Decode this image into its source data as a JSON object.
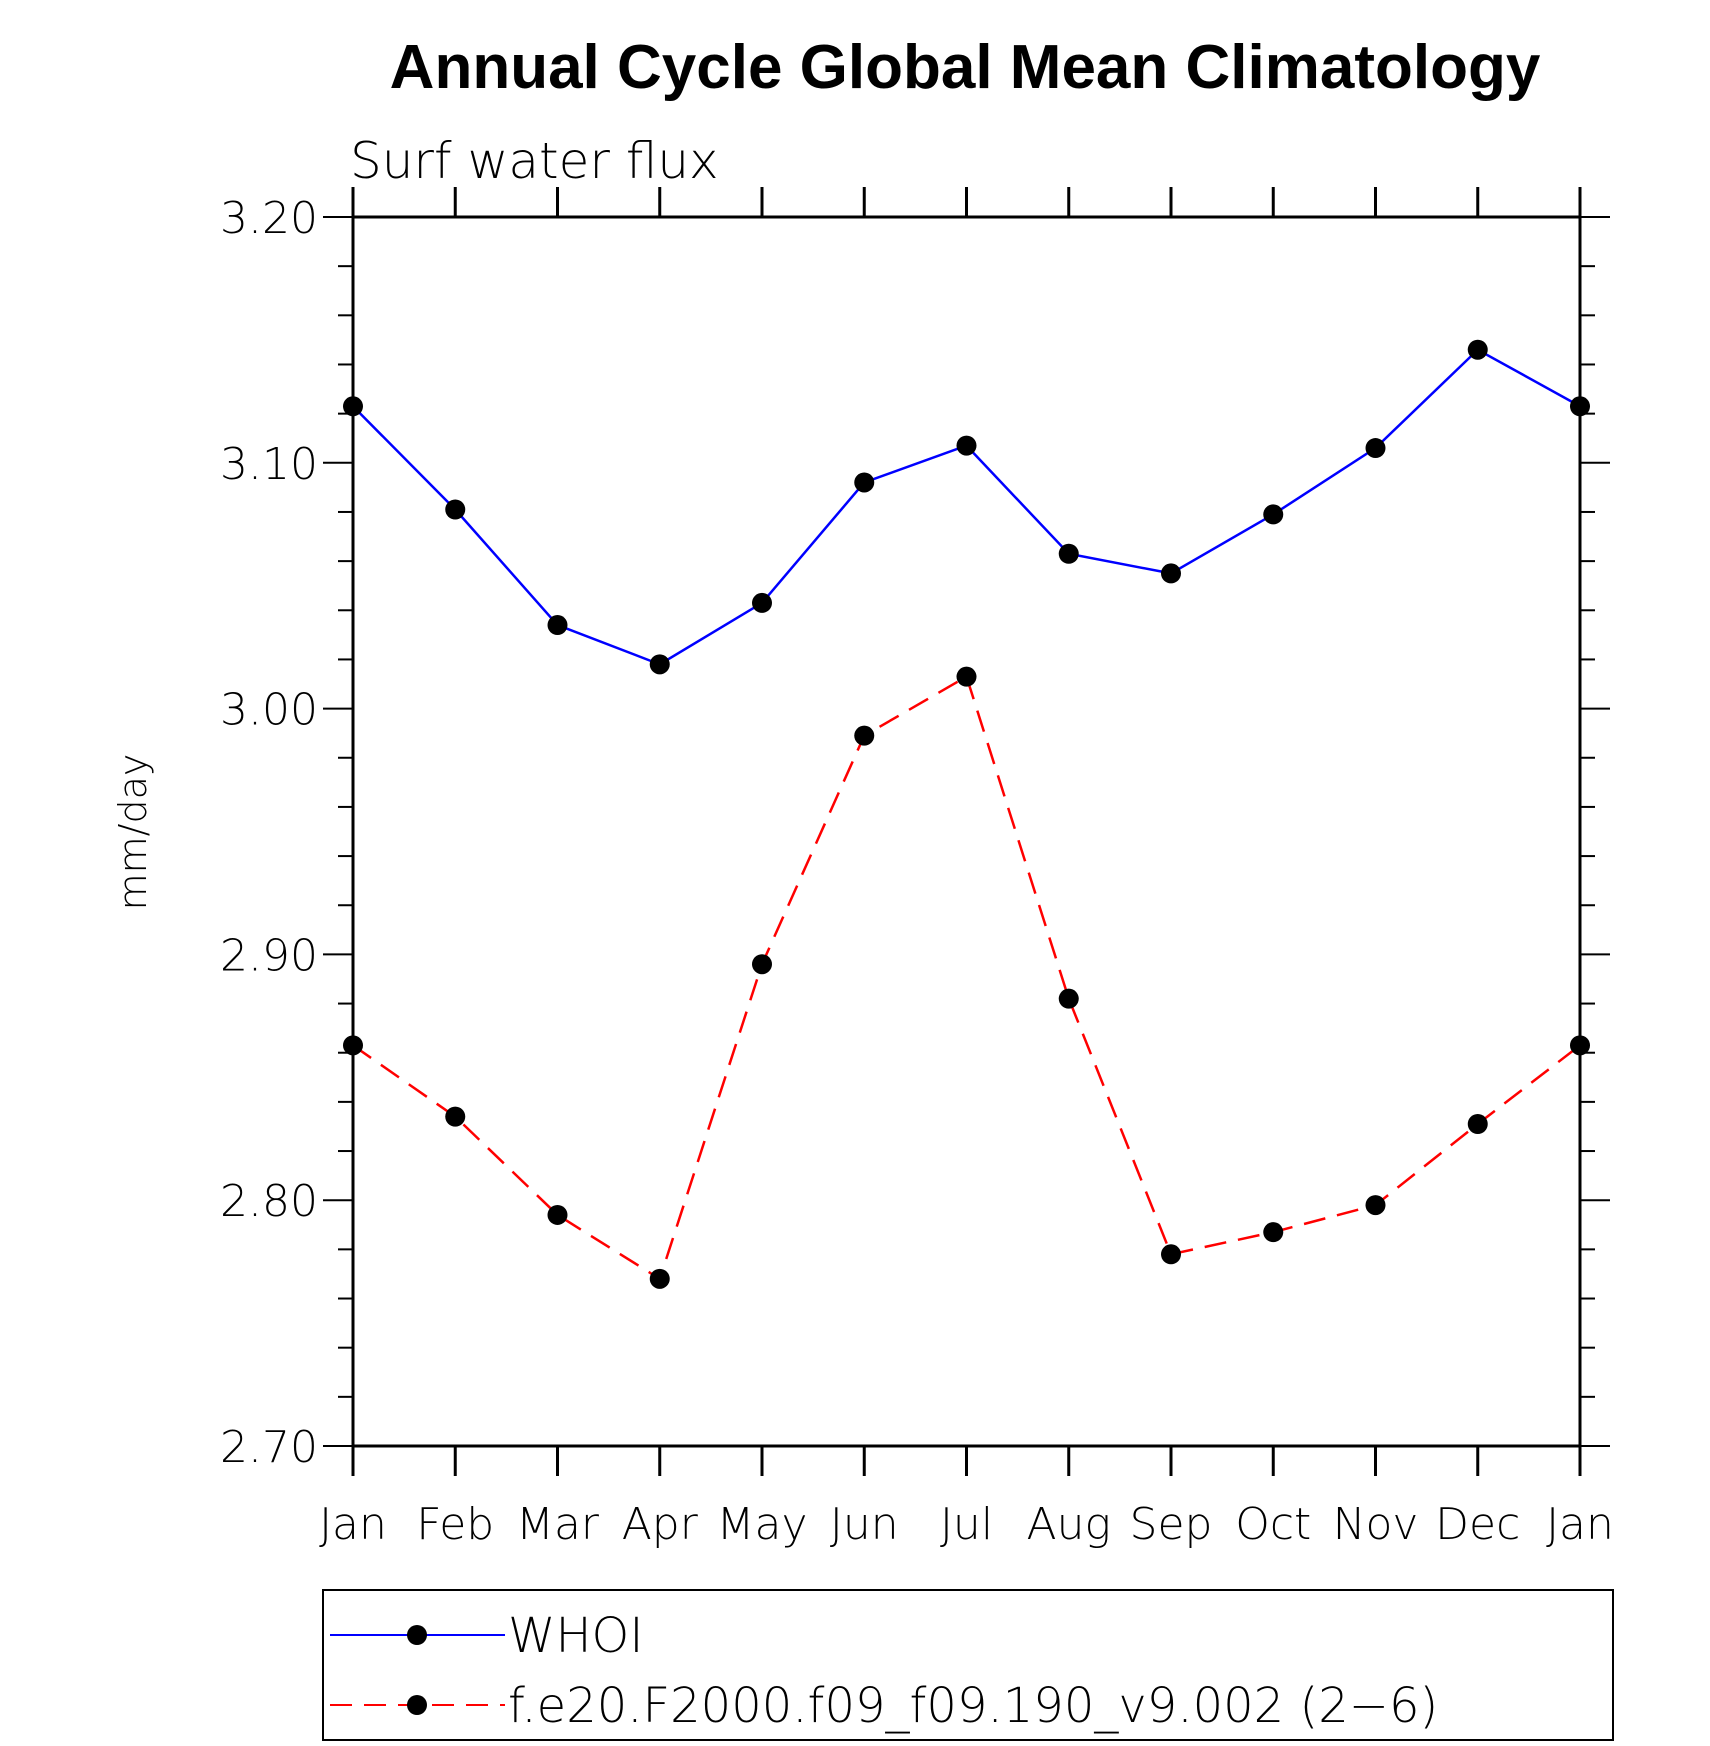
{
  "chart_data": {
    "type": "line",
    "title": "Annual Cycle Global Mean Climatology",
    "subtitle": "Surf water flux",
    "xlabel": "",
    "ylabel": "mm/day",
    "categories": [
      "Jan",
      "Feb",
      "Mar",
      "Apr",
      "May",
      "Jun",
      "Jul",
      "Aug",
      "Sep",
      "Oct",
      "Nov",
      "Dec",
      "Jan"
    ],
    "ylim": [
      2.7,
      3.2
    ],
    "yticks": [
      "2.70",
      "2.80",
      "2.90",
      "3.00",
      "3.10",
      "3.20"
    ],
    "grid": false,
    "legend_position": "bottom",
    "series": [
      {
        "name": "WHOI",
        "color": "#0000ff",
        "line_style": "solid",
        "marker": "filled-circle",
        "values": [
          3.123,
          3.081,
          3.034,
          3.018,
          3.043,
          3.092,
          3.107,
          3.063,
          3.055,
          3.079,
          3.106,
          3.146,
          3.123
        ]
      },
      {
        "name": "f.e20.F2000.f09_f09.190_v9.002 (2−6)",
        "color": "#ff0000",
        "line_style": "dashed",
        "marker": "filled-circle",
        "values": [
          2.863,
          2.834,
          2.794,
          2.768,
          2.896,
          2.989,
          3.013,
          2.882,
          2.778,
          2.787,
          2.798,
          2.831,
          2.863
        ]
      }
    ]
  }
}
